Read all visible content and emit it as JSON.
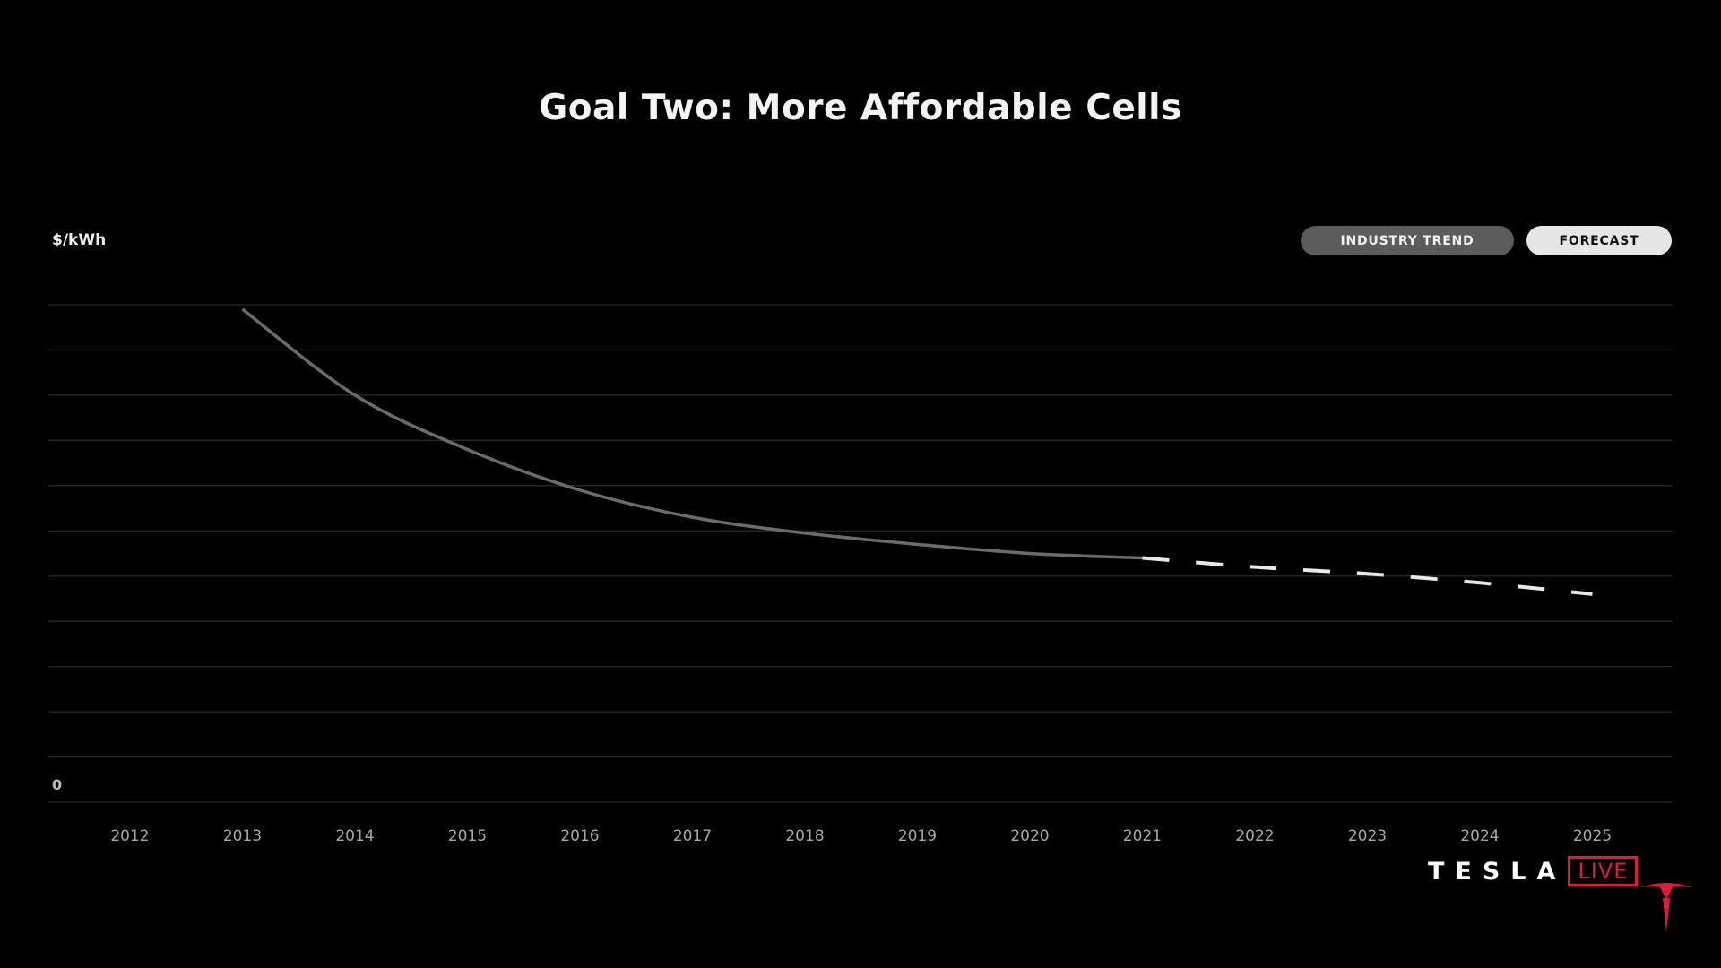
{
  "slide": {
    "title": "Goal Two: More Affordable Cells",
    "legend": {
      "trend_label": "INDUSTRY TREND",
      "forecast_label": "FORECAST"
    },
    "brand": {
      "wordmark": "TESLA",
      "live_label": "LIVE"
    }
  },
  "colors": {
    "background": "#000000",
    "trend": "#6b6b6b",
    "forecast": "#e8e8e8",
    "grid": "#2a2a2a",
    "brand_red": "#e31937"
  },
  "chart_data": {
    "type": "line",
    "title": "Goal Two: More Affordable Cells",
    "ylabel": "$/kWh",
    "xlabel": "",
    "x_ticks": [
      "2012",
      "2013",
      "2014",
      "2015",
      "2016",
      "2017",
      "2018",
      "2019",
      "2020",
      "2021",
      "2022",
      "2023",
      "2024",
      "2025"
    ],
    "y_ticks": [
      "0"
    ],
    "ylim": [
      0,
      11
    ],
    "grid": true,
    "legend_position": "top-right",
    "series": [
      {
        "name": "INDUSTRY TREND",
        "style": "solid",
        "x": [
          2013,
          2014,
          2015,
          2016,
          2017,
          2018,
          2019,
          2020,
          2021
        ],
        "y": [
          10.9,
          9.0,
          7.8,
          6.9,
          6.3,
          5.95,
          5.7,
          5.5,
          5.4
        ]
      },
      {
        "name": "FORECAST",
        "style": "dashed",
        "x": [
          2021,
          2022,
          2023,
          2024,
          2025
        ],
        "y": [
          5.4,
          5.2,
          5.05,
          4.85,
          4.6
        ]
      }
    ]
  }
}
